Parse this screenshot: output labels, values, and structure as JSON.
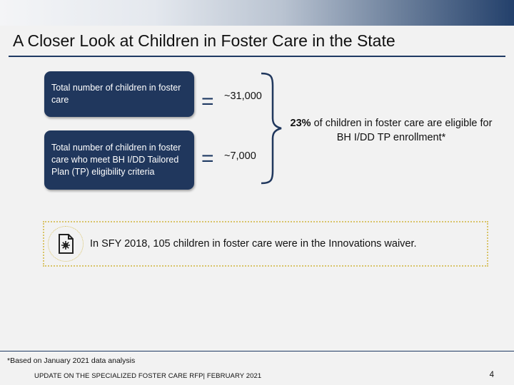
{
  "slide": {
    "title": "A Closer Look at Children in Foster Care in the State",
    "stats": [
      {
        "label": "Total number of children in foster care",
        "value": "~31,000"
      },
      {
        "label": "Total number of children in foster care who meet BH I/DD Tailored Plan (TP) eligibility criteria",
        "value": "~7,000"
      }
    ],
    "equals_sign": "=",
    "summary": {
      "percent": "23%",
      "text": " of children in foster care are eligible for BH I/DD TP enrollment*"
    },
    "callout": {
      "icon": "document-icon",
      "text": "In SFY 2018, 105 children in foster care were in the Innovations waiver."
    },
    "footnote": "*Based on January 2021 data analysis",
    "footer": "UPDATE ON THE SPECIALIZED FOSTER CARE RFP| FEBRUARY 2021",
    "page_number": "4"
  },
  "colors": {
    "navy": "#20375d",
    "callout_border": "#d9c46a"
  }
}
